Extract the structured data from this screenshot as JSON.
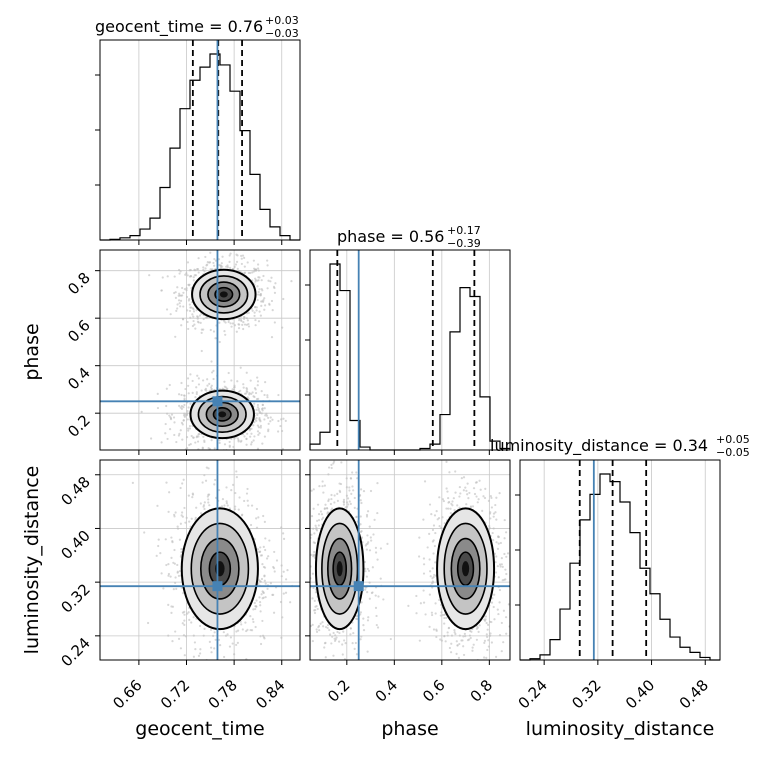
{
  "chart_data": {
    "type": "corner",
    "parameters": [
      "geocent_time",
      "phase",
      "luminosity_distance"
    ],
    "axis_labels": {
      "x": [
        "geocent_time",
        "phase",
        "luminosity_distance"
      ],
      "y": [
        "",
        "phase",
        "luminosity_distance"
      ]
    },
    "titles": [
      {
        "param": "geocent_time",
        "text": "geocent_time = 0.76",
        "sup": "+0.03",
        "sub": "−0.03"
      },
      {
        "param": "phase",
        "text": "phase = 0.56",
        "sup": "+0.17",
        "sub": "−0.39"
      },
      {
        "param": "luminosity_distance",
        "text": "luminosity_distance = 0.34",
        "sup": "+0.05",
        "sub": "−0.05"
      }
    ],
    "ranges": {
      "geocent_time": [
        0.611,
        0.863
      ],
      "phase": [
        0.045,
        0.887
      ],
      "luminosity_distance": [
        0.204,
        0.502
      ]
    },
    "ticks": {
      "geocent_time": [
        "0.66",
        "0.72",
        "0.78",
        "0.84"
      ],
      "phase": [
        "0.2",
        "0.4",
        "0.6",
        "0.8"
      ],
      "luminosity_distance": [
        "0.24",
        "0.32",
        "0.40",
        "0.48"
      ]
    },
    "truth": {
      "geocent_time": 0.759,
      "phase": 0.25,
      "luminosity_distance": 0.314
    },
    "quantiles": {
      "geocent_time": [
        0.728,
        0.76,
        0.79
      ],
      "phase": [
        0.16,
        0.562,
        0.737
      ],
      "luminosity_distance": [
        0.293,
        0.342,
        0.392
      ]
    },
    "histograms": {
      "geocent_time": {
        "edges": [
          0.611,
          0.6236,
          0.6362,
          0.6488,
          0.6614,
          0.674,
          0.6866,
          0.6992,
          0.7118,
          0.7244,
          0.737,
          0.7496,
          0.7622,
          0.7748,
          0.7874,
          0.8,
          0.8126,
          0.8252,
          0.8378,
          0.8504,
          0.863
        ],
        "counts": [
          0,
          0.3,
          1,
          2,
          5,
          10,
          24,
          42,
          60,
          73,
          79,
          85,
          80,
          68,
          50,
          30,
          14,
          6,
          2,
          0
        ]
      },
      "phase": {
        "edges": [
          0.045,
          0.0871,
          0.1292,
          0.1713,
          0.2134,
          0.2555,
          0.2976,
          0.3397,
          0.3818,
          0.4239,
          0.466,
          0.5081,
          0.5502,
          0.5923,
          0.6344,
          0.6765,
          0.7186,
          0.7607,
          0.8028,
          0.8449,
          0.887
        ],
        "counts": [
          2,
          6,
          63,
          54,
          10,
          1,
          0,
          0,
          0,
          0,
          0,
          0.5,
          2,
          12,
          40,
          55,
          52,
          18,
          3,
          0.5
        ]
      },
      "luminosity_distance": {
        "edges": [
          0.204,
          0.2189,
          0.2338,
          0.2487,
          0.2636,
          0.2785,
          0.2934,
          0.3083,
          0.3232,
          0.3381,
          0.353,
          0.3679,
          0.3828,
          0.3977,
          0.4126,
          0.4275,
          0.4424,
          0.4573,
          0.4722,
          0.4871,
          0.502
        ],
        "counts": [
          0,
          0.5,
          2,
          8,
          20,
          38,
          55,
          65,
          73,
          70,
          62,
          50,
          36,
          26,
          16,
          9,
          5,
          3,
          1,
          0
        ]
      }
    },
    "joint_modes": {
      "geocent_time_vs_phase": [
        {
          "center": [
            0.767,
            0.7
          ],
          "spread": [
            0.02,
            0.052
          ]
        },
        {
          "center": [
            0.765,
            0.195
          ],
          "spread": [
            0.02,
            0.05
          ]
        }
      ],
      "geocent_time_vs_luminosity_distance": [
        {
          "center": [
            0.762,
            0.34
          ],
          "spread": [
            0.024,
            0.045
          ]
        }
      ],
      "phase_vs_luminosity_distance": [
        {
          "center": [
            0.17,
            0.34
          ],
          "spread": [
            0.05,
            0.045
          ]
        },
        {
          "center": [
            0.7,
            0.34
          ],
          "spread": [
            0.06,
            0.045
          ]
        }
      ]
    },
    "colors": {
      "truth": "#4682b4",
      "hist": "#000000",
      "quantile": "#000000",
      "grid": "#c8c8c8",
      "points": "#bdbdbd"
    }
  }
}
